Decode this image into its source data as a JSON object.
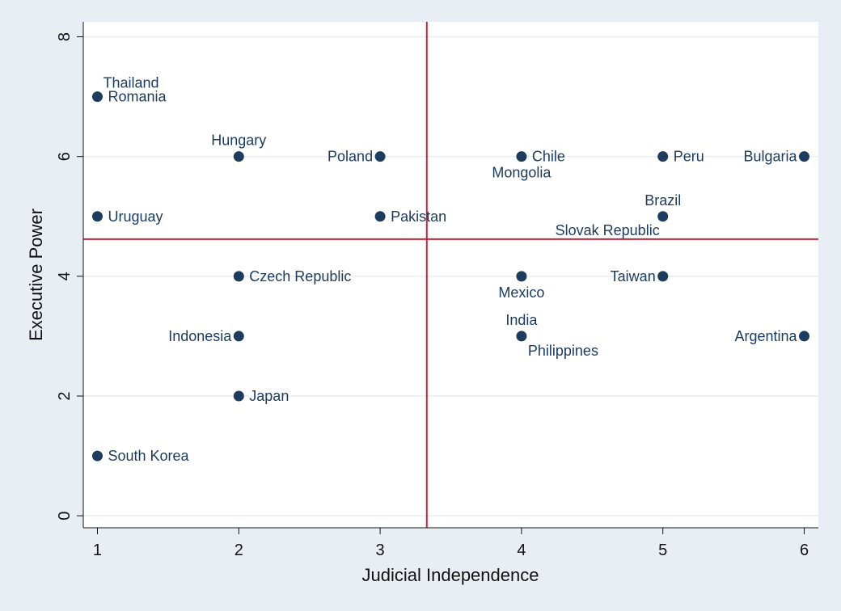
{
  "chart_data": {
    "type": "scatter",
    "xlabel": "Judicial Independence",
    "ylabel": "Executive Power",
    "xlim": [
      0.9,
      6.1
    ],
    "ylim": [
      -0.2,
      8.25
    ],
    "xticks": [
      1,
      2,
      3,
      4,
      5,
      6
    ],
    "yticks": [
      0,
      2,
      4,
      6,
      8
    ],
    "grid": true,
    "reference_lines": {
      "vertical_x": 3.33,
      "horizontal_y": 4.62
    },
    "colors": {
      "marker": "#1d3c5e",
      "label": "#1b3a5c",
      "reference_line": "#c0253a",
      "plot_bg": "#ffffff",
      "page_bg": "#e9eef4",
      "grid": "#e9edf0"
    },
    "points": [
      {
        "label": "Thailand",
        "x": 1,
        "y": 7,
        "label_pos": "above-right"
      },
      {
        "label": "Romania",
        "x": 1,
        "y": 7,
        "label_pos": "right"
      },
      {
        "label": "Uruguay",
        "x": 1,
        "y": 5,
        "label_pos": "right"
      },
      {
        "label": "South Korea",
        "x": 1,
        "y": 1,
        "label_pos": "right"
      },
      {
        "label": "Hungary",
        "x": 2,
        "y": 6,
        "label_pos": "above"
      },
      {
        "label": "Czech Republic",
        "x": 2,
        "y": 4,
        "label_pos": "right"
      },
      {
        "label": "Indonesia",
        "x": 2,
        "y": 3,
        "label_pos": "left"
      },
      {
        "label": "Japan",
        "x": 2,
        "y": 2,
        "label_pos": "right"
      },
      {
        "label": "Poland",
        "x": 3,
        "y": 6,
        "label_pos": "left"
      },
      {
        "label": "Pakistan",
        "x": 3,
        "y": 5,
        "label_pos": "right"
      },
      {
        "label": "Chile",
        "x": 4,
        "y": 6,
        "label_pos": "right"
      },
      {
        "label": "Mongolia",
        "x": 4,
        "y": 6,
        "label_pos": "below"
      },
      {
        "label": "Mexico",
        "x": 4,
        "y": 4,
        "label_pos": "below"
      },
      {
        "label": "India",
        "x": 4,
        "y": 3,
        "label_pos": "above"
      },
      {
        "label": "Philippines",
        "x": 4,
        "y": 3,
        "label_pos": "below-right"
      },
      {
        "label": "Peru",
        "x": 5,
        "y": 6,
        "label_pos": "right"
      },
      {
        "label": "Brazil",
        "x": 5,
        "y": 5,
        "label_pos": "above"
      },
      {
        "label": "Slovak Republic",
        "x": 5,
        "y": 5,
        "label_pos": "below-left"
      },
      {
        "label": "Taiwan",
        "x": 5,
        "y": 4,
        "label_pos": "left"
      },
      {
        "label": "Bulgaria",
        "x": 6,
        "y": 6,
        "label_pos": "left"
      },
      {
        "label": "Argentina",
        "x": 6,
        "y": 3,
        "label_pos": "left"
      }
    ]
  }
}
